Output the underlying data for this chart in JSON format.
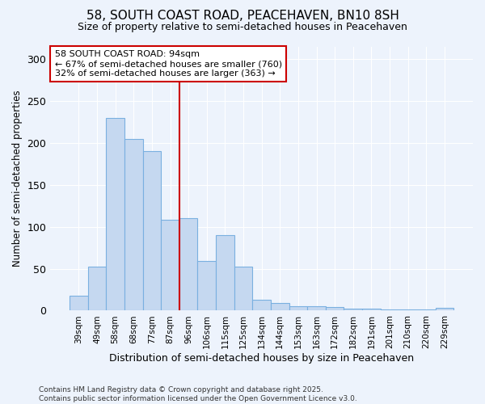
{
  "title": "58, SOUTH COAST ROAD, PEACEHAVEN, BN10 8SH",
  "subtitle": "Size of property relative to semi-detached houses in Peacehaven",
  "xlabel": "Distribution of semi-detached houses by size in Peacehaven",
  "ylabel": "Number of semi-detached properties",
  "categories": [
    "39sqm",
    "49sqm",
    "58sqm",
    "68sqm",
    "77sqm",
    "87sqm",
    "96sqm",
    "106sqm",
    "115sqm",
    "125sqm",
    "134sqm",
    "144sqm",
    "153sqm",
    "163sqm",
    "172sqm",
    "182sqm",
    "191sqm",
    "201sqm",
    "210sqm",
    "220sqm",
    "229sqm"
  ],
  "values": [
    18,
    52,
    230,
    205,
    190,
    108,
    110,
    59,
    90,
    52,
    13,
    9,
    5,
    5,
    4,
    2,
    2,
    1,
    1,
    1,
    3
  ],
  "bar_color": "#c5d8f0",
  "bar_edge_color": "#7ab0e0",
  "background_color": "#edf3fc",
  "grid_color": "#ffffff",
  "vline_color": "#cc0000",
  "vline_pos": 6.0,
  "annotation_title": "58 SOUTH COAST ROAD: 94sqm",
  "annotation_line1": "← 67% of semi-detached houses are smaller (760)",
  "annotation_line2": "32% of semi-detached houses are larger (363) →",
  "annotation_box_color": "#ffffff",
  "annotation_box_edge": "#cc0000",
  "footer_line1": "Contains HM Land Registry data © Crown copyright and database right 2025.",
  "footer_line2": "Contains public sector information licensed under the Open Government Licence v3.0.",
  "ylim": [
    0,
    315
  ],
  "yticks": [
    0,
    50,
    100,
    150,
    200,
    250,
    300
  ]
}
